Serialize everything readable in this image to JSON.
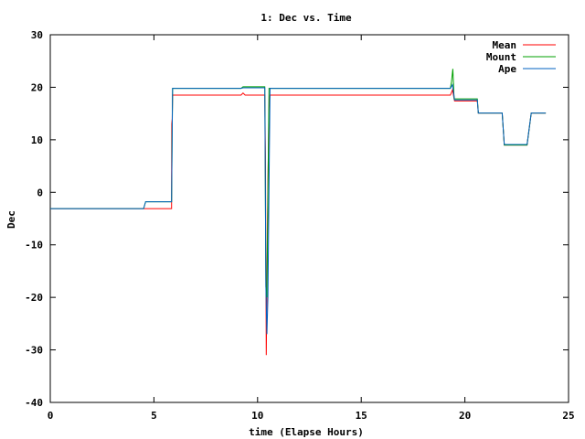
{
  "chart_data": {
    "type": "line",
    "title": "1: Dec vs. Time",
    "xlabel": "time (Elapse Hours)",
    "ylabel": "Dec",
    "xlim": [
      0,
      25
    ],
    "ylim": [
      -40,
      30
    ],
    "xticks": [
      0,
      5,
      10,
      15,
      20,
      25
    ],
    "yticks": [
      -40,
      -30,
      -20,
      -10,
      0,
      10,
      20,
      30
    ],
    "xtick_labels": [
      "0",
      "5",
      "10",
      "15",
      "20",
      "25"
    ],
    "ytick_labels": [
      "-40",
      "-30",
      "-20",
      "-10",
      "0",
      "10",
      "20",
      "30"
    ],
    "grid": false,
    "legend_position": "top-right",
    "series": [
      {
        "name": "Mean",
        "color": "#ff0000",
        "points": [
          [
            0,
            -3.1
          ],
          [
            4.5,
            -3.1
          ],
          [
            5.85,
            -3.1
          ],
          [
            5.85,
            3
          ],
          [
            5.86,
            13
          ],
          [
            5.88,
            14
          ],
          [
            5.9,
            18.5
          ],
          [
            9.2,
            18.5
          ],
          [
            9.3,
            18.9
          ],
          [
            9.4,
            18.5
          ],
          [
            10.35,
            18.5
          ],
          [
            10.38,
            7
          ],
          [
            10.42,
            -31
          ],
          [
            10.45,
            -18
          ],
          [
            10.5,
            2
          ],
          [
            10.55,
            16
          ],
          [
            10.6,
            18.5
          ],
          [
            19.3,
            18.5
          ],
          [
            19.4,
            19.5
          ],
          [
            19.5,
            17.4
          ],
          [
            20.6,
            17.4
          ],
          [
            20.65,
            15.1
          ],
          [
            21.8,
            15.1
          ],
          [
            21.9,
            9
          ],
          [
            23.0,
            9
          ],
          [
            23.2,
            15.1
          ],
          [
            23.9,
            15.1
          ]
        ]
      },
      {
        "name": "Mount",
        "color": "#00a000",
        "points": [
          [
            0,
            -3.1
          ],
          [
            4.5,
            -3.1
          ],
          [
            4.6,
            -1.8
          ],
          [
            5.85,
            -1.8
          ],
          [
            5.9,
            19.8
          ],
          [
            9.2,
            19.8
          ],
          [
            9.3,
            20.1
          ],
          [
            10.35,
            20.1
          ],
          [
            10.4,
            -18
          ],
          [
            10.45,
            -20
          ],
          [
            10.55,
            19.8
          ],
          [
            19.3,
            19.8
          ],
          [
            19.35,
            21
          ],
          [
            19.42,
            23.5
          ],
          [
            19.48,
            17.8
          ],
          [
            20.6,
            17.8
          ],
          [
            20.65,
            15.1
          ],
          [
            21.8,
            15.1
          ],
          [
            21.9,
            9
          ],
          [
            23.0,
            9
          ],
          [
            23.2,
            15.1
          ],
          [
            23.9,
            15.1
          ]
        ]
      },
      {
        "name": "Ape",
        "color": "#0060c0",
        "points": [
          [
            0,
            -3.1
          ],
          [
            4.5,
            -3.1
          ],
          [
            4.6,
            -1.8
          ],
          [
            5.85,
            -1.8
          ],
          [
            5.9,
            19.8
          ],
          [
            9.2,
            19.8
          ],
          [
            9.3,
            19.9
          ],
          [
            10.35,
            19.9
          ],
          [
            10.4,
            -18
          ],
          [
            10.45,
            -27
          ],
          [
            10.5,
            -20
          ],
          [
            10.6,
            19.8
          ],
          [
            19.3,
            19.8
          ],
          [
            19.4,
            20.5
          ],
          [
            19.5,
            17.6
          ],
          [
            20.6,
            17.6
          ],
          [
            20.65,
            15.1
          ],
          [
            21.8,
            15.1
          ],
          [
            21.9,
            9.1
          ],
          [
            23.0,
            9.1
          ],
          [
            23.2,
            15.1
          ],
          [
            23.9,
            15.1
          ]
        ]
      }
    ]
  }
}
